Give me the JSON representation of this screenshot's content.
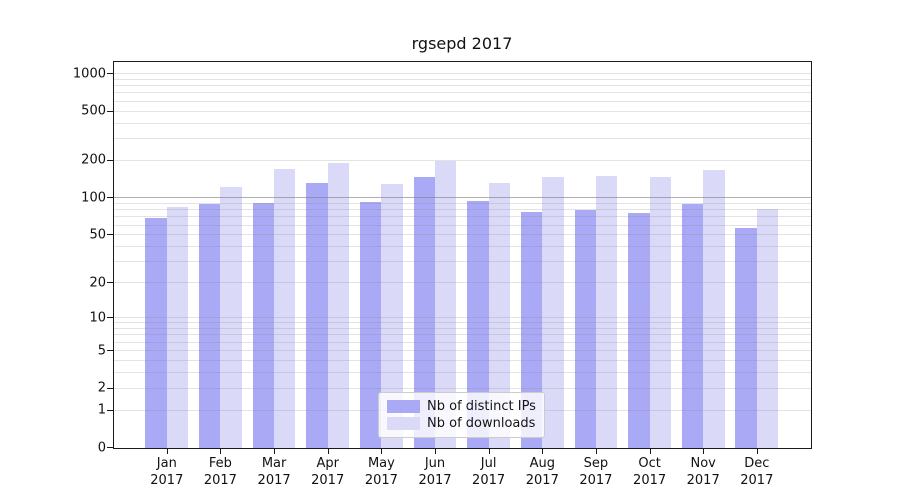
{
  "chart_data": {
    "type": "bar",
    "title": "rgsepd 2017",
    "categories": [
      "Jan 2017",
      "Feb 2017",
      "Mar 2017",
      "Apr 2017",
      "May 2017",
      "Jun 2017",
      "Jul 2017",
      "Aug 2017",
      "Sep 2017",
      "Oct 2017",
      "Nov 2017",
      "Dec 2017"
    ],
    "x_months": [
      "Jan",
      "Feb",
      "Mar",
      "Apr",
      "May",
      "Jun",
      "Jul",
      "Aug",
      "Sep",
      "Oct",
      "Nov",
      "Dec"
    ],
    "x_year": "2017",
    "series": [
      {
        "name": "Nb of distinct IPs",
        "color": "#a9a9f5",
        "values": [
          68,
          88,
          90,
          130,
          92,
          145,
          93,
          76,
          79,
          74,
          88,
          56
        ]
      },
      {
        "name": "Nb of downloads",
        "color": "#dadaf8",
        "values": [
          84,
          120,
          170,
          190,
          128,
          195,
          131,
          147,
          149,
          147,
          167,
          80
        ]
      }
    ],
    "yscale": "log10(value+1)",
    "ylim": [
      0,
      1225
    ],
    "yticks": [
      0,
      1,
      2,
      5,
      10,
      20,
      50,
      100,
      200,
      500,
      1000
    ],
    "minor_gridlines": [
      3,
      4,
      6,
      7,
      8,
      9,
      30,
      40,
      60,
      70,
      80,
      90,
      300,
      400,
      600,
      700,
      800,
      900
    ],
    "emphasized_gridline": 100,
    "grid": true,
    "legend": {
      "position": "lower-center-inside",
      "labels": [
        "Nb of distinct IPs",
        "Nb of downloads"
      ]
    }
  },
  "colors": {
    "grid": "rgba(128,128,128,0.22)",
    "grid_emphasis": "rgba(128,128,128,0.62)",
    "spine": "#1a1a1a"
  }
}
